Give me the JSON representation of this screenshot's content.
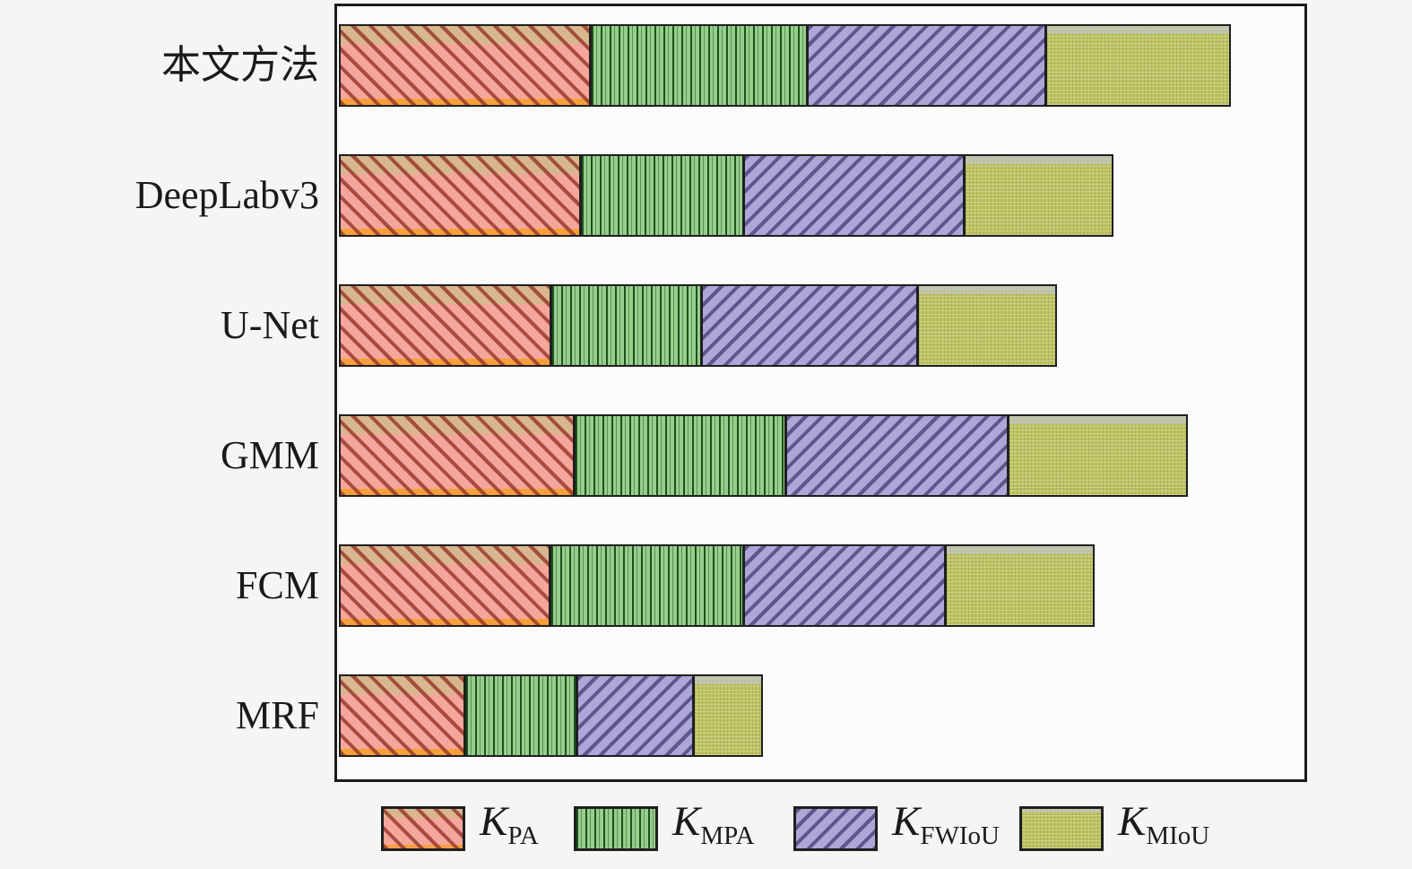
{
  "chart_data": {
    "type": "bar",
    "orientation": "horizontal",
    "stacked": true,
    "title": "",
    "xlabel": "",
    "ylabel": "",
    "categories": [
      "本文方法",
      "DeepLabv3",
      "U-Net",
      "GMM",
      "FCM",
      "MRF"
    ],
    "series": [
      {
        "name": "K_PA",
        "legend_base": "K",
        "legend_sub": "PA",
        "face_color": "#F5A69C",
        "hatch": "diagonal-down-red",
        "values": [
          26.1,
          25.1,
          22.0,
          24.4,
          21.9,
          13.1
        ]
      },
      {
        "name": "K_MPA",
        "legend_base": "K",
        "legend_sub": "MPA",
        "face_color": "#98CE8D",
        "hatch": "vertical-green",
        "values": [
          22.5,
          16.9,
          15.6,
          21.9,
          20.1,
          11.6
        ]
      },
      {
        "name": "K_FWIoU",
        "legend_base": "K",
        "legend_sub": "FWIoU",
        "face_color": "#ACA7D6",
        "hatch": "diagonal-up-purple",
        "values": [
          24.7,
          22.8,
          22.4,
          23.1,
          20.9,
          12.1
        ]
      },
      {
        "name": "K_MIoU",
        "legend_base": "K",
        "legend_sub": "MIoU",
        "face_color": "#BDC35F",
        "hatch": "fine-checker-olive",
        "values": [
          19.1,
          15.4,
          14.4,
          18.5,
          15.4,
          7.1
        ]
      }
    ],
    "values_unit": "percent of x-axis length (segment lengths estimated from pixels; axis has no visible tick labels)",
    "xlim": [
      0,
      100
    ],
    "axis": {
      "frame": true,
      "tick_labels_visible": false,
      "gridlines": false
    },
    "legend": {
      "position": "bottom",
      "entries": [
        "K_PA",
        "K_MPA",
        "K_FWIoU",
        "K_MIoU"
      ]
    }
  },
  "colors": {
    "page_background": "#f5f5f4",
    "plot_background": "#fcfcfc",
    "frame_border": "#1b1b1b",
    "kpa_face": "#F5A69C",
    "kpa_hatch": "#963428",
    "kpa_top_band": "#D6B88E",
    "kpa_bottom_strip": "#F59F3B",
    "kmpa_face": "#98CE8D",
    "kmpa_line": "#124812",
    "kfwiou_face": "#ACA7D6",
    "kfwiou_hatch": "#4A427C",
    "kmiou_face": "#BDC35F",
    "kmiou_top_strip": "#C1C5BC",
    "text": "#1a1a1a"
  }
}
